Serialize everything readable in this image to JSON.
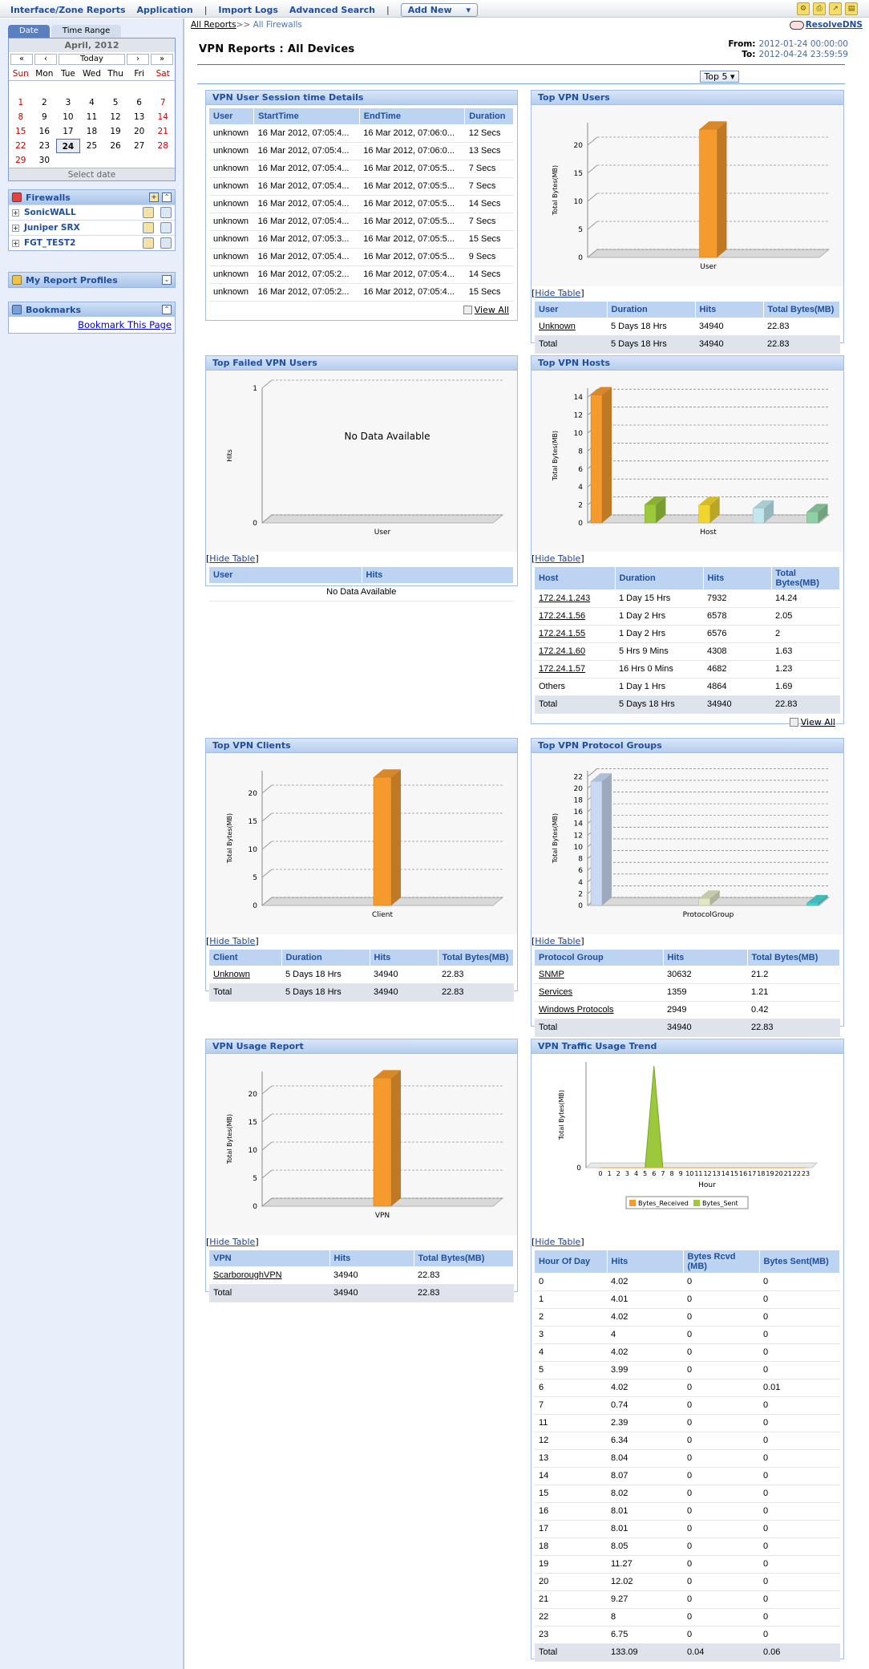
{
  "topnav": {
    "items": [
      "Interface/Zone Reports",
      "Application",
      "Import Logs",
      "Advanced Search"
    ],
    "add_new": "Add New"
  },
  "sidebar": {
    "tabs": [
      "Date",
      "Time Range"
    ],
    "month": "April, 2012",
    "nav": [
      "«",
      "‹",
      "Today",
      "›",
      "»"
    ],
    "days": [
      "Sun",
      "Mon",
      "Tue",
      "Wed",
      "Thu",
      "Fri",
      "Sat"
    ],
    "weeks": [
      [
        "",
        "",
        "",
        "",
        "",
        "",
        ""
      ],
      [
        "1",
        "2",
        "3",
        "4",
        "5",
        "6",
        "7"
      ],
      [
        "8",
        "9",
        "10",
        "11",
        "12",
        "13",
        "14"
      ],
      [
        "15",
        "16",
        "17",
        "18",
        "19",
        "20",
        "21"
      ],
      [
        "22",
        "23",
        "24",
        "25",
        "26",
        "27",
        "28"
      ],
      [
        "29",
        "30",
        "",
        "",
        "",
        "",
        ""
      ]
    ],
    "selected": "24",
    "footer": "Select date",
    "firewalls_title": "Firewalls",
    "firewalls": [
      "SonicWALL",
      "Juniper SRX",
      "FGT_TEST2"
    ],
    "profiles_title": "My Report Profiles",
    "bookmarks_title": "Bookmarks",
    "bookmark_link": "Bookmark This Page"
  },
  "breadcrumb": {
    "root": "All Reports",
    "sep": ">> ",
    "current": "All Firewalls"
  },
  "resolve": "ResolveDNS",
  "page_title": "VPN Reports : All Devices",
  "from_label": "From:",
  "from_value": "2012-01-24  00:00:00",
  "to_label": "To:",
  "to_value": "2012-04-24  23:59:59",
  "top_select": "Top 5",
  "hide_table": "Hide Table",
  "view_all": "View All",
  "no_data": "No Data Available",
  "session": {
    "title": "VPN User Session time Details",
    "headers": [
      "User",
      "StartTime",
      "EndTime",
      "Duration"
    ],
    "rows": [
      [
        "unknown",
        "16 Mar 2012, 07:05:4...",
        "16 Mar 2012, 07:06:0...",
        "12 Secs"
      ],
      [
        "unknown",
        "16 Mar 2012, 07:05:4...",
        "16 Mar 2012, 07:06:0...",
        "13 Secs"
      ],
      [
        "unknown",
        "16 Mar 2012, 07:05:4...",
        "16 Mar 2012, 07:05:5...",
        "7 Secs"
      ],
      [
        "unknown",
        "16 Mar 2012, 07:05:4...",
        "16 Mar 2012, 07:05:5...",
        "7 Secs"
      ],
      [
        "unknown",
        "16 Mar 2012, 07:05:4...",
        "16 Mar 2012, 07:05:5...",
        "14 Secs"
      ],
      [
        "unknown",
        "16 Mar 2012, 07:05:4...",
        "16 Mar 2012, 07:05:5...",
        "7 Secs"
      ],
      [
        "unknown",
        "16 Mar 2012, 07:05:3...",
        "16 Mar 2012, 07:05:5...",
        "15 Secs"
      ],
      [
        "unknown",
        "16 Mar 2012, 07:05:4...",
        "16 Mar 2012, 07:05:5...",
        "9 Secs"
      ],
      [
        "unknown",
        "16 Mar 2012, 07:05:2...",
        "16 Mar 2012, 07:05:4...",
        "14 Secs"
      ],
      [
        "unknown",
        "16 Mar 2012, 07:05:2...",
        "16 Mar 2012, 07:05:4...",
        "15 Secs"
      ]
    ]
  },
  "top_users": {
    "title": "Top VPN Users",
    "headers": [
      "User",
      "Duration",
      "Hits",
      "Total Bytes(MB)"
    ],
    "rows": [
      [
        "Unknown",
        "5 Days 18 Hrs",
        "34940",
        "22.83"
      ],
      [
        "Total",
        "5 Days 18 Hrs",
        "34940",
        "22.83"
      ]
    ]
  },
  "failed": {
    "title": "Top Failed VPN Users",
    "headers": [
      "User",
      "Hits"
    ]
  },
  "hosts": {
    "title": "Top VPN Hosts",
    "headers": [
      "Host",
      "Duration",
      "Hits",
      "Total Bytes(MB)"
    ],
    "rows": [
      [
        "172.24.1.243",
        "1 Day 15 Hrs",
        "7932",
        "14.24"
      ],
      [
        "172.24.1.56",
        "1 Day 2 Hrs",
        "6578",
        "2.05"
      ],
      [
        "172.24.1.55",
        "1 Day 2 Hrs",
        "6576",
        "2"
      ],
      [
        "172.24.1.60",
        "5 Hrs 9 Mins",
        "4308",
        "1.63"
      ],
      [
        "172.24.1.57",
        "16 Hrs 0 Mins",
        "4682",
        "1.23"
      ],
      [
        "Others",
        "1 Day 1 Hrs",
        "4864",
        "1.69"
      ],
      [
        "Total",
        "5 Days 18 Hrs",
        "34940",
        "22.83"
      ]
    ]
  },
  "clients": {
    "title": "Top VPN Clients",
    "headers": [
      "Client",
      "Duration",
      "Hits",
      "Total Bytes(MB)"
    ],
    "rows": [
      [
        "Unknown",
        "5 Days 18 Hrs",
        "34940",
        "22.83"
      ],
      [
        "Total",
        "5 Days 18 Hrs",
        "34940",
        "22.83"
      ]
    ]
  },
  "protocols": {
    "title": "Top VPN Protocol Groups",
    "headers": [
      "Protocol Group",
      "Hits",
      "Total Bytes(MB)"
    ],
    "rows": [
      [
        "SNMP",
        "30632",
        "21.2"
      ],
      [
        "Services",
        "1359",
        "1.21"
      ],
      [
        "Windows Protocols",
        "2949",
        "0.42"
      ],
      [
        "Total",
        "34940",
        "22.83"
      ]
    ]
  },
  "usage": {
    "title": "VPN Usage Report",
    "headers": [
      "VPN",
      "Hits",
      "Total Bytes(MB)"
    ],
    "rows": [
      [
        "ScarboroughVPN",
        "34940",
        "22.83"
      ],
      [
        "Total",
        "34940",
        "22.83"
      ]
    ]
  },
  "trend": {
    "title": "VPN Traffic Usage Trend",
    "headers": [
      "Hour Of Day",
      "Hits",
      "Bytes Rcvd (MB)",
      "Bytes Sent(MB)"
    ],
    "rows": [
      [
        "0",
        "4.02",
        "0",
        "0"
      ],
      [
        "1",
        "4.01",
        "0",
        "0"
      ],
      [
        "2",
        "4.02",
        "0",
        "0"
      ],
      [
        "3",
        "4",
        "0",
        "0"
      ],
      [
        "4",
        "4.02",
        "0",
        "0"
      ],
      [
        "5",
        "3.99",
        "0",
        "0"
      ],
      [
        "6",
        "4.02",
        "0",
        "0.01"
      ],
      [
        "7",
        "0.74",
        "0",
        "0"
      ],
      [
        "11",
        "2.39",
        "0",
        "0"
      ],
      [
        "12",
        "6.34",
        "0",
        "0"
      ],
      [
        "13",
        "8.04",
        "0",
        "0"
      ],
      [
        "14",
        "8.07",
        "0",
        "0"
      ],
      [
        "15",
        "8.02",
        "0",
        "0"
      ],
      [
        "16",
        "8.01",
        "0",
        "0"
      ],
      [
        "17",
        "8.01",
        "0",
        "0"
      ],
      [
        "18",
        "8.05",
        "0",
        "0"
      ],
      [
        "19",
        "11.27",
        "0",
        "0"
      ],
      [
        "20",
        "12.02",
        "0",
        "0"
      ],
      [
        "21",
        "9.27",
        "0",
        "0"
      ],
      [
        "22",
        "8",
        "0",
        "0"
      ],
      [
        "23",
        "6.75",
        "0",
        "0"
      ],
      [
        "Total",
        "133.09",
        "0.04",
        "0.06"
      ]
    ]
  },
  "chart_data": [
    {
      "id": "top_users",
      "type": "bar",
      "categories": [
        "Unknown"
      ],
      "values": [
        22.83
      ],
      "xlabel": "User",
      "ylabel": "Total Bytes(MB)",
      "ylim": [
        0,
        24
      ],
      "yticks": [
        0,
        5,
        10,
        15,
        20
      ],
      "colors": [
        "#f59a2d"
      ]
    },
    {
      "id": "failed",
      "type": "bar",
      "categories": [],
      "values": [],
      "xlabel": "User",
      "ylabel": "Hits",
      "ylim": [
        0,
        1
      ],
      "yticks": [
        0,
        1
      ],
      "colors": []
    },
    {
      "id": "hosts",
      "type": "bar",
      "categories": [
        "172.24.1.243",
        "172.24.1.56",
        "172.24.1.55",
        "172.24.1.60",
        "172.24.1.57"
      ],
      "values": [
        14.24,
        2.05,
        2,
        1.63,
        1.23
      ],
      "xlabel": "Host",
      "ylabel": "Total Bytes(MB)",
      "ylim": [
        0,
        15
      ],
      "yticks": [
        0,
        2,
        4,
        6,
        8,
        10,
        12,
        14
      ],
      "colors": [
        "#f59a2d",
        "#9bc93b",
        "#f0d430",
        "#c2e8ee",
        "#8fd0a5"
      ]
    },
    {
      "id": "clients",
      "type": "bar",
      "categories": [
        "Unknown"
      ],
      "values": [
        22.83
      ],
      "xlabel": "Client",
      "ylabel": "Total Bytes(MB)",
      "ylim": [
        0,
        24
      ],
      "yticks": [
        0,
        5,
        10,
        15,
        20
      ],
      "colors": [
        "#f59a2d"
      ]
    },
    {
      "id": "protocols",
      "type": "bar",
      "categories": [
        "SNMP",
        "Services",
        "Windows Protocols"
      ],
      "values": [
        21.2,
        1.21,
        0.42
      ],
      "xlabel": "ProtocolGroup",
      "ylabel": "Total Bytes(MB)",
      "ylim": [
        0,
        23
      ],
      "yticks": [
        0,
        2,
        4,
        6,
        8,
        10,
        12,
        14,
        16,
        18,
        20,
        22
      ],
      "colors": [
        "#c9d9f2",
        "#dfe7c4",
        "#4fd2d2"
      ]
    },
    {
      "id": "usage",
      "type": "bar",
      "categories": [
        "ScarboroughVPN"
      ],
      "values": [
        22.83
      ],
      "xlabel": "VPN",
      "ylabel": "Total Bytes(MB)",
      "ylim": [
        0,
        24
      ],
      "yticks": [
        0,
        5,
        10,
        15,
        20
      ],
      "colors": [
        "#f59a2d"
      ]
    },
    {
      "id": "trend",
      "type": "area",
      "x": [
        0,
        1,
        2,
        3,
        4,
        5,
        6,
        7,
        8,
        9,
        10,
        11,
        12,
        13,
        14,
        15,
        16,
        17,
        18,
        19,
        20,
        21,
        22,
        23
      ],
      "series": [
        {
          "name": "Bytes_Received",
          "values": [
            0,
            0,
            0,
            0,
            0,
            0,
            0,
            0,
            0,
            0,
            0,
            0,
            0,
            0,
            0,
            0,
            0,
            0,
            0,
            0,
            0,
            0,
            0,
            0
          ]
        },
        {
          "name": "Bytes_Sent",
          "values": [
            0,
            0,
            0,
            0,
            0,
            0,
            0.01,
            0,
            0,
            0,
            0,
            0,
            0,
            0,
            0,
            0,
            0,
            0,
            0,
            0,
            0,
            0,
            0,
            0
          ]
        }
      ],
      "xlabel": "Hour",
      "ylabel": "Total Bytes(MB)",
      "legend": "bottom",
      "colors": [
        "#f59a2d",
        "#9bc93b"
      ]
    }
  ]
}
